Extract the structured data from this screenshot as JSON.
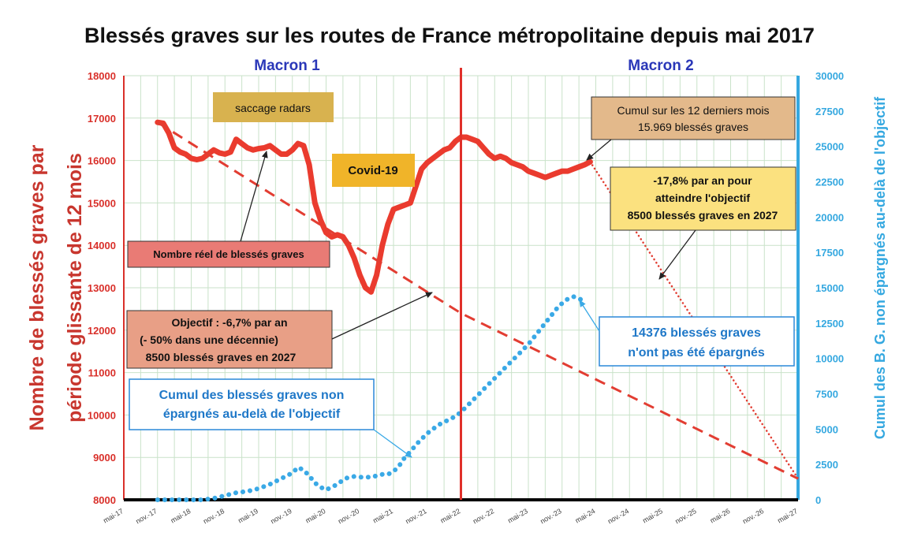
{
  "title": "Blessés graves sur les routes de France métropolitaine depuis mai 2017",
  "colors": {
    "actual": "#ea3b2e",
    "objective": "#e23d32",
    "cumul": "#3aa9e6",
    "macron_line": "#e0302a",
    "term_label": "#2a37b8",
    "grid": "#c9e2c9"
  },
  "terms": [
    "Macron 1",
    "Macron 2"
  ],
  "annotations": {
    "radars": "saccage radars",
    "covid": "Covid-19",
    "cumul12": [
      "Cumul sur les 12 derniers mois",
      "15.969 blessés graves"
    ],
    "needed": [
      "-17,8% par an pour",
      "atteindre l'objectif",
      "8500 blessés graves en 2027"
    ],
    "reel": "Nombre réel de blessés graves",
    "objectif": [
      "Objectif : -6,7% par an",
      "(- 50% dans une décennie)",
      "8500 blessés graves en 2027"
    ],
    "cumul_label": [
      "Cumul des blessés graves non",
      "épargnés  au-delà de l'objectif"
    ],
    "not_spared": [
      "14376 blessés  graves",
      "n'ont pas été épargnés"
    ]
  },
  "chart_data": {
    "type": "line",
    "title": "Blessés graves sur les routes de France métropolitaine depuis mai 2017",
    "ylabel": "Nombre de blessés graves par période glissante de 12 mois",
    "y2label": "Cumul des B. G. non épargnés au-delà de l'objectif",
    "ylim": [
      8000,
      18000
    ],
    "y2lim": [
      0,
      30000
    ],
    "yticks": [
      8000,
      9000,
      10000,
      11000,
      12000,
      13000,
      14000,
      15000,
      16000,
      17000,
      18000
    ],
    "y2ticks": [
      0,
      2500,
      5000,
      7500,
      10000,
      12500,
      15000,
      17500,
      20000,
      22500,
      25000,
      27500,
      30000
    ],
    "xtick_labels": [
      "mai-17",
      "nov.-17",
      "mai-18",
      "nov.-18",
      "mai-19",
      "nov.-19",
      "mai-20",
      "nov.-20",
      "mai-21",
      "nov.-21",
      "mai-22",
      "nov.-22",
      "mai-23",
      "nov.-23",
      "mai-24",
      "nov.-24",
      "mai-25",
      "nov.-25",
      "mai-26",
      "nov.-26",
      "mai-27"
    ],
    "x_unit": "months since mai-17",
    "vertical_marker": {
      "x": 60,
      "label": "mai-22"
    },
    "grid": true,
    "series": [
      {
        "name": "Nombre réel de blessés graves",
        "axis": "left",
        "style": "solid",
        "points": [
          [
            6,
            16900
          ],
          [
            7,
            16880
          ],
          [
            8,
            16650
          ],
          [
            9,
            16300
          ],
          [
            10,
            16200
          ],
          [
            11,
            16150
          ],
          [
            12,
            16050
          ],
          [
            13,
            16020
          ],
          [
            14,
            16050
          ],
          [
            15,
            16150
          ],
          [
            16,
            16250
          ],
          [
            17,
            16180
          ],
          [
            18,
            16150
          ],
          [
            19,
            16200
          ],
          [
            20,
            16500
          ],
          [
            21,
            16400
          ],
          [
            22,
            16300
          ],
          [
            23,
            16250
          ],
          [
            24,
            16280
          ],
          [
            25,
            16300
          ],
          [
            26,
            16350
          ],
          [
            27,
            16250
          ],
          [
            28,
            16150
          ],
          [
            29,
            16150
          ],
          [
            30,
            16250
          ],
          [
            31,
            16400
          ],
          [
            32,
            16350
          ],
          [
            33,
            15900
          ],
          [
            34,
            15000
          ],
          [
            35,
            14600
          ],
          [
            36,
            14300
          ],
          [
            37,
            14200
          ],
          [
            38,
            14250
          ],
          [
            39,
            14200
          ],
          [
            40,
            14000
          ],
          [
            41,
            13700
          ],
          [
            42,
            13300
          ],
          [
            43,
            13000
          ],
          [
            44,
            12900
          ],
          [
            45,
            13300
          ],
          [
            46,
            14000
          ],
          [
            47,
            14500
          ],
          [
            48,
            14850
          ],
          [
            49,
            14900
          ],
          [
            50,
            14950
          ],
          [
            51,
            15000
          ],
          [
            52,
            15400
          ],
          [
            53,
            15800
          ],
          [
            54,
            15950
          ],
          [
            55,
            16050
          ],
          [
            56,
            16150
          ],
          [
            57,
            16250
          ],
          [
            58,
            16300
          ],
          [
            59,
            16450
          ],
          [
            60,
            16550
          ],
          [
            61,
            16550
          ],
          [
            62,
            16500
          ],
          [
            63,
            16450
          ],
          [
            64,
            16300
          ],
          [
            65,
            16150
          ],
          [
            66,
            16050
          ],
          [
            67,
            16100
          ],
          [
            68,
            16050
          ],
          [
            69,
            15950
          ],
          [
            70,
            15900
          ],
          [
            71,
            15850
          ],
          [
            72,
            15750
          ],
          [
            73,
            15700
          ],
          [
            74,
            15650
          ],
          [
            75,
            15600
          ],
          [
            76,
            15650
          ],
          [
            77,
            15700
          ],
          [
            78,
            15750
          ],
          [
            79,
            15750
          ],
          [
            80,
            15800
          ],
          [
            81,
            15850
          ],
          [
            82,
            15900
          ],
          [
            83,
            15969
          ]
        ]
      },
      {
        "name": "Objectif : -6,7% par an",
        "axis": "left",
        "style": "dashed",
        "points": [
          [
            6,
            16900
          ],
          [
            60,
            12400
          ],
          [
            120,
            8500
          ]
        ]
      },
      {
        "name": "-17,8% par an pour atteindre l'objectif",
        "axis": "left",
        "style": "dotted",
        "points": [
          [
            83,
            15969
          ],
          [
            120,
            8500
          ]
        ]
      },
      {
        "name": "Cumul des blessés graves non épargnés au-delà de l'objectif",
        "axis": "right",
        "style": "dotted",
        "points": [
          [
            6,
            0
          ],
          [
            10,
            0
          ],
          [
            14,
            0
          ],
          [
            16,
            100
          ],
          [
            18,
            300
          ],
          [
            20,
            500
          ],
          [
            22,
            600
          ],
          [
            24,
            800
          ],
          [
            26,
            1100
          ],
          [
            28,
            1500
          ],
          [
            30,
            1900
          ],
          [
            31,
            2300
          ],
          [
            32,
            2100
          ],
          [
            33,
            1700
          ],
          [
            34,
            1200
          ],
          [
            35,
            900
          ],
          [
            36,
            700
          ],
          [
            37,
            900
          ],
          [
            38,
            1100
          ],
          [
            39,
            1400
          ],
          [
            40,
            1600
          ],
          [
            41,
            1650
          ],
          [
            42,
            1600
          ],
          [
            43,
            1600
          ],
          [
            44,
            1600
          ],
          [
            45,
            1700
          ],
          [
            46,
            1800
          ],
          [
            47,
            1800
          ],
          [
            48,
            2000
          ],
          [
            49,
            2400
          ],
          [
            50,
            3000
          ],
          [
            51,
            3400
          ],
          [
            52,
            3900
          ],
          [
            53,
            4300
          ],
          [
            54,
            4700
          ],
          [
            55,
            5000
          ],
          [
            56,
            5300
          ],
          [
            57,
            5500
          ],
          [
            58,
            5700
          ],
          [
            59,
            5900
          ],
          [
            60,
            6200
          ],
          [
            61,
            6600
          ],
          [
            62,
            7000
          ],
          [
            63,
            7400
          ],
          [
            64,
            7800
          ],
          [
            65,
            8200
          ],
          [
            66,
            8600
          ],
          [
            67,
            9000
          ],
          [
            68,
            9400
          ],
          [
            69,
            9800
          ],
          [
            70,
            10200
          ],
          [
            71,
            10600
          ],
          [
            72,
            11000
          ],
          [
            73,
            11500
          ],
          [
            74,
            12000
          ],
          [
            75,
            12500
          ],
          [
            76,
            13000
          ],
          [
            77,
            13500
          ],
          [
            78,
            13900
          ],
          [
            79,
            14200
          ],
          [
            80,
            14376
          ],
          [
            81,
            14250
          ],
          [
            82,
            14000
          ]
        ]
      }
    ]
  }
}
